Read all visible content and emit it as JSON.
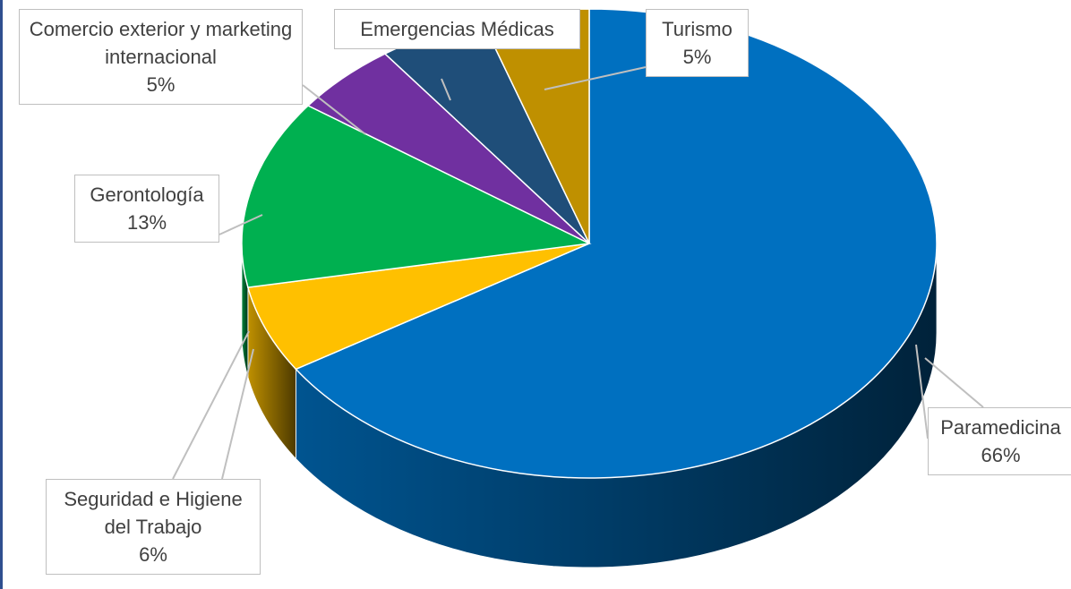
{
  "chart_data": {
    "type": "pie3d",
    "categories": [
      "Paramedicina",
      "Seguridad e Higiene del Trabajo",
      "Gerontología",
      "Comercio exterior y marketing internacional",
      "Emergencias Médicas",
      "Turismo"
    ],
    "values": [
      66,
      6,
      13,
      5,
      5,
      5
    ],
    "value_labels": [
      "66%",
      "6%",
      "13%",
      "5%",
      null,
      "5%"
    ],
    "colors": [
      "#0070c0",
      "#ffc000",
      "#00b050",
      "#7030a0",
      "#1f4e79",
      "#bf9000"
    ]
  }
}
